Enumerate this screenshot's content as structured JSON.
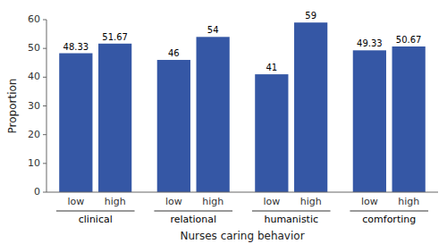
{
  "chart_data": {
    "type": "bar",
    "categories": [
      "clinical",
      "relational",
      "humanistic",
      "comforting"
    ],
    "series": [
      {
        "name": "low",
        "values": [
          48.33,
          46,
          41,
          49.33
        ]
      },
      {
        "name": "high",
        "values": [
          51.67,
          54,
          59,
          50.67
        ]
      }
    ],
    "color": "#3557A5",
    "ylim": [
      0,
      60
    ],
    "yticks": [
      0,
      10,
      20,
      30,
      40,
      50,
      60
    ],
    "ylabel": "Proportion",
    "xlabel": "Nurses caring behavior",
    "data_labels": true,
    "grid": false
  }
}
